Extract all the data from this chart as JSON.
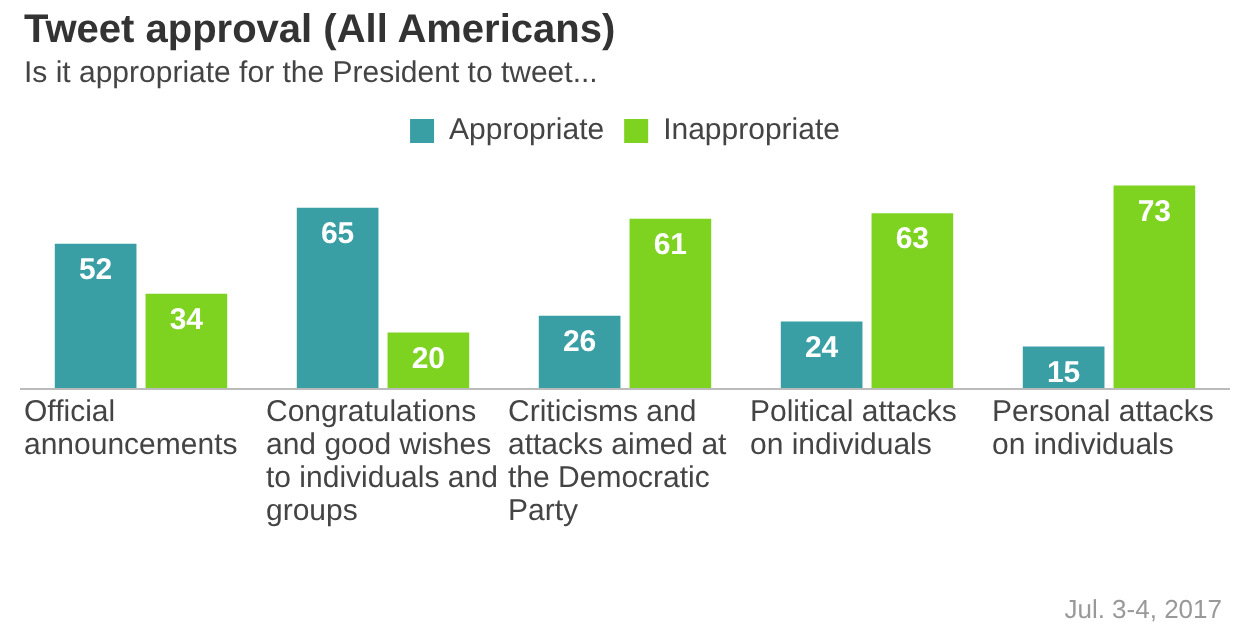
{
  "chart_data": {
    "type": "bar",
    "title": "Tweet approval (All Americans)",
    "subtitle": "Is it appropriate for the President to tweet...",
    "categories": [
      "Official announcements",
      "Congratulations and good wishes to individuals and groups",
      "Criticisms and attacks aimed at the Democratic Party",
      "Political attacks on individuals",
      "Personal attacks on individuals"
    ],
    "series": [
      {
        "name": "Appropriate",
        "color": "#3a9ea5",
        "values": [
          52,
          65,
          26,
          24,
          15
        ]
      },
      {
        "name": "Inappropriate",
        "color": "#7ed321",
        "values": [
          34,
          20,
          61,
          63,
          73
        ]
      }
    ],
    "data_labels": true,
    "legend": "top",
    "grid": false,
    "annotations": [
      "Jul. 3-4, 2017"
    ]
  }
}
